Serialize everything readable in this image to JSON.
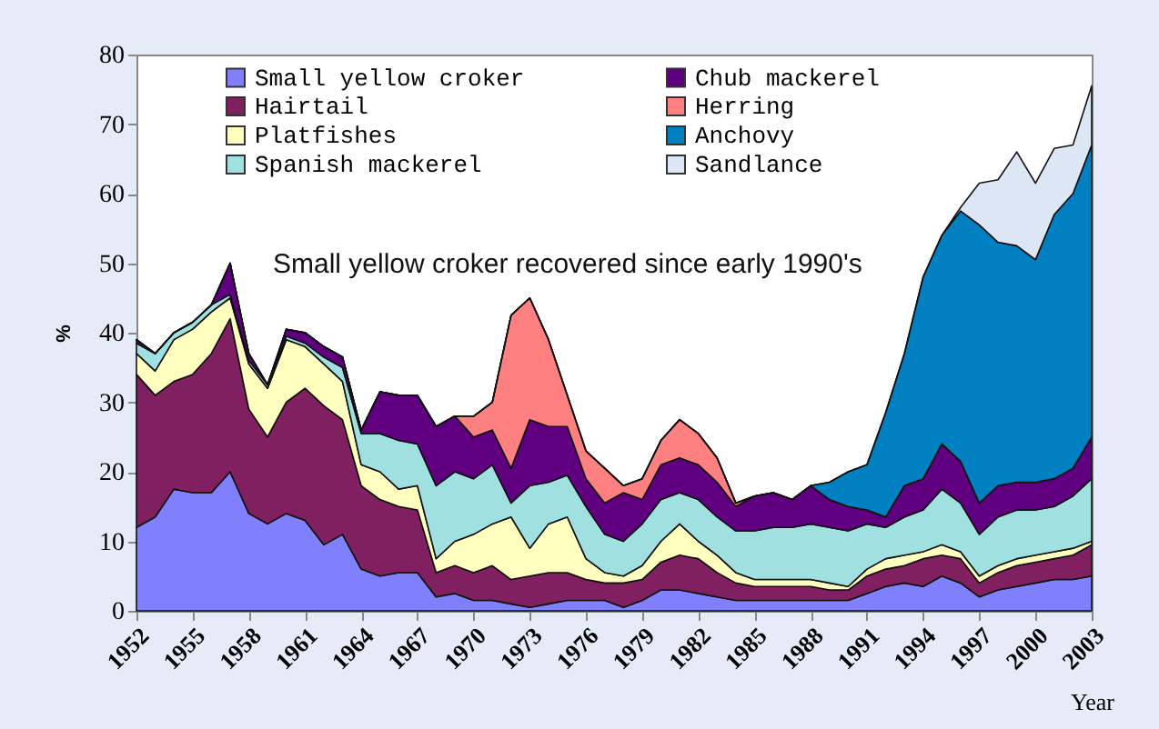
{
  "chart_data": {
    "type": "area",
    "stacked": true,
    "xlabel": "Year",
    "ylabel": "%",
    "annotations": [
      "Small yellow croker recovered since early 1990's"
    ],
    "x": [
      1952,
      1953,
      1954,
      1955,
      1956,
      1957,
      1958,
      1959,
      1960,
      1961,
      1962,
      1963,
      1964,
      1965,
      1966,
      1967,
      1968,
      1969,
      1970,
      1971,
      1972,
      1973,
      1974,
      1975,
      1976,
      1977,
      1978,
      1979,
      1980,
      1981,
      1982,
      1983,
      1984,
      1985,
      1986,
      1987,
      1988,
      1989,
      1990,
      1991,
      1992,
      1993,
      1994,
      1995,
      1996,
      1997,
      1998,
      1999,
      2000,
      2001,
      2002,
      2003
    ],
    "xlim": [
      1952,
      2003
    ],
    "xticks": [
      1952,
      1955,
      1958,
      1961,
      1964,
      1967,
      1970,
      1973,
      1976,
      1979,
      1982,
      1985,
      1988,
      1991,
      1994,
      1997,
      2000,
      2003
    ],
    "ylim": [
      0,
      80
    ],
    "yticks": [
      0,
      10,
      20,
      30,
      40,
      50,
      60,
      70,
      80
    ],
    "grid": false,
    "legend": "top",
    "series": [
      {
        "name": "Small yellow croker",
        "color": "#8080ff",
        "values": [
          12,
          13.5,
          17.5,
          17,
          17,
          20,
          14,
          12.5,
          14,
          13,
          9.5,
          11,
          6,
          5,
          5.5,
          5.5,
          2,
          2.5,
          1.5,
          1.5,
          1,
          0.5,
          1,
          1.5,
          1.5,
          1.5,
          0.5,
          1.5,
          3,
          3,
          2.5,
          2,
          1.5,
          1.5,
          1.5,
          1.5,
          1.5,
          1.5,
          1.5,
          2.5,
          3.5,
          4,
          3.5,
          5,
          4,
          2,
          3,
          3.5,
          4,
          4.5,
          4.5,
          5
        ]
      },
      {
        "name": "Hairtail",
        "color": "#802060",
        "values": [
          22,
          17.5,
          15.5,
          17,
          20,
          22,
          15,
          12.5,
          16,
          19,
          20,
          16.5,
          12,
          11,
          9.5,
          9,
          3.5,
          4,
          4,
          5,
          3.5,
          4.5,
          4.5,
          4,
          3,
          2.5,
          3.5,
          3,
          4,
          5,
          5,
          3.5,
          2.5,
          2,
          2,
          2,
          2,
          1.5,
          1.5,
          2.5,
          2.5,
          2.5,
          4,
          3,
          3.5,
          2,
          2.5,
          3,
          3,
          3,
          3.5,
          4.5
        ]
      },
      {
        "name": "Platfishes",
        "color": "#ffffc0",
        "values": [
          3,
          3.5,
          6,
          6.5,
          6,
          3,
          6.5,
          7,
          9,
          6,
          6,
          5.5,
          3,
          4,
          2.5,
          3.5,
          2,
          3.5,
          5.5,
          6,
          9,
          4,
          7,
          8,
          3,
          1.5,
          1,
          2,
          3,
          4.5,
          2.5,
          2.5,
          1.5,
          1,
          1,
          1,
          1,
          1,
          0.5,
          1,
          1.5,
          1.5,
          1,
          1.5,
          1,
          1,
          1,
          1,
          1,
          1,
          1,
          0.5
        ]
      },
      {
        "name": "Spanish mackerel",
        "color": "#a0e0e0",
        "values": [
          1.5,
          2.5,
          1,
          1,
          1,
          0.5,
          0.5,
          0.5,
          0.5,
          0.5,
          1,
          2,
          4.5,
          5.5,
          7,
          6,
          10.5,
          10,
          8,
          8.5,
          2,
          9,
          6,
          6,
          7.5,
          5.5,
          5,
          6,
          6,
          4.5,
          6,
          5.5,
          6,
          7,
          7.5,
          7.5,
          8,
          8,
          8,
          6.5,
          4.5,
          5.5,
          6,
          8,
          7,
          6,
          7,
          7,
          6.5,
          6.5,
          7.5,
          9
        ]
      },
      {
        "name": "Chub mackerel",
        "color": "#600080",
        "values": [
          0.5,
          0,
          0,
          0,
          0,
          4.5,
          1,
          0,
          1,
          1.5,
          1.5,
          1.5,
          0.5,
          6,
          6.5,
          7,
          8.5,
          8,
          6,
          5,
          5,
          9.5,
          8,
          7,
          4,
          4.5,
          7,
          3.5,
          5,
          5,
          5,
          5,
          3.5,
          5,
          5,
          4,
          5.5,
          4,
          3.5,
          2,
          1.5,
          4.5,
          4.5,
          6.5,
          6,
          4.5,
          4.5,
          4,
          4,
          4,
          4,
          6
        ]
      },
      {
        "name": "Herring",
        "color": "#ff8080",
        "values": [
          0,
          0,
          0,
          0,
          0,
          0,
          0,
          0,
          0,
          0,
          0,
          0,
          0,
          0,
          0,
          0,
          0,
          0,
          3,
          4,
          22,
          17.5,
          12.5,
          4.5,
          4,
          5,
          1,
          3,
          3.5,
          5.5,
          4.5,
          3.5,
          0.5,
          0,
          0,
          0,
          0,
          0,
          0,
          0,
          0,
          0,
          0,
          0,
          0,
          0,
          0,
          0,
          0,
          0,
          0,
          0
        ]
      },
      {
        "name": "Anchovy",
        "color": "#0080c0",
        "values": [
          0,
          0,
          0,
          0,
          0,
          0,
          0,
          0,
          0,
          0,
          0,
          0,
          0,
          0,
          0,
          0,
          0,
          0,
          0,
          0,
          0,
          0,
          0,
          0,
          0,
          0,
          0,
          0,
          0,
          0,
          0,
          0,
          0,
          0,
          0,
          0,
          0,
          2.5,
          5,
          6.5,
          15,
          19,
          29,
          30,
          36,
          40,
          35,
          34,
          32,
          38,
          39.5,
          42
        ]
      },
      {
        "name": "Sandlance",
        "color": "#dde6f5",
        "values": [
          0,
          0,
          0,
          0,
          0,
          0,
          0,
          0,
          0,
          0,
          0,
          0,
          0,
          0,
          0,
          0,
          0,
          0,
          0,
          0,
          0,
          0,
          0,
          0,
          0,
          0,
          0,
          0,
          0,
          0,
          0,
          0,
          0,
          0,
          0,
          0,
          0,
          0,
          0,
          0,
          0,
          0,
          0,
          0,
          0.5,
          6,
          9,
          13.5,
          11,
          9.5,
          7,
          8.5
        ]
      }
    ]
  }
}
